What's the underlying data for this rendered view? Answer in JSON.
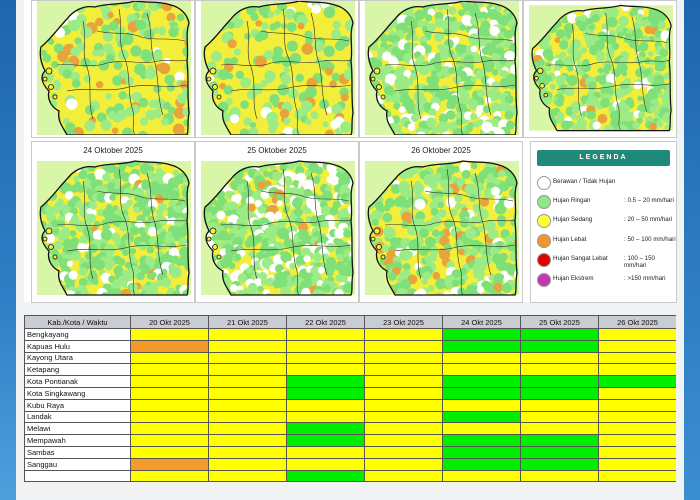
{
  "maps": [
    {
      "title": ""
    },
    {
      "title": ""
    },
    {
      "title": ""
    },
    {
      "title": ""
    },
    {
      "title": "24 Oktober 2025"
    },
    {
      "title": "25 Oktober 2025"
    },
    {
      "title": "26 Oktober 2025"
    }
  ],
  "legend": {
    "title": "LEGENDA",
    "items": [
      {
        "label": "Berawan / Tidak Hujan",
        "range": "",
        "color": "#ffffff"
      },
      {
        "label": "Hujan Ringan",
        "range": ": 0.5 – 20 mm/hari",
        "color": "#8ee88a"
      },
      {
        "label": "Hujan Sedang",
        "range": ": 20 – 50 mm/hari",
        "color": "#ffff33"
      },
      {
        "label": "Hujan Lebat",
        "range": ": 50 – 100 mm/hari",
        "color": "#f0962a"
      },
      {
        "label": "Hujan Sangat Lebat",
        "range": ": 100 – 150 mm/hari",
        "color": "#e00000"
      },
      {
        "label": "Hujan Ekstrem",
        "range": ": >150 mm/hari",
        "color": "#c23ab0"
      }
    ]
  },
  "table": {
    "header": [
      "Kab./Kota / Waktu",
      "20 Okt 2025",
      "21 Okt 2025",
      "22 Okt 2025",
      "23 Okt 2025",
      "24 Okt 2025",
      "25 Okt 2025",
      "26 Okt 2025"
    ],
    "rows": [
      {
        "name": "Bengkayang",
        "cells": [
          "y",
          "y",
          "y",
          "y",
          "g",
          "g",
          "y"
        ]
      },
      {
        "name": "Kapuas Hulu",
        "cells": [
          "o",
          "y",
          "y",
          "y",
          "g",
          "g",
          "y"
        ]
      },
      {
        "name": "Kayong Utara",
        "cells": [
          "y",
          "y",
          "y",
          "y",
          "y",
          "y",
          "y"
        ]
      },
      {
        "name": "Ketapang",
        "cells": [
          "y",
          "y",
          "y",
          "y",
          "y",
          "y",
          "y"
        ]
      },
      {
        "name": "Kota Pontianak",
        "cells": [
          "y",
          "y",
          "g",
          "y",
          "g",
          "g",
          "g"
        ]
      },
      {
        "name": "Kota Singkawang",
        "cells": [
          "y",
          "y",
          "g",
          "y",
          "g",
          "g",
          "y"
        ]
      },
      {
        "name": "Kubu Raya",
        "cells": [
          "y",
          "y",
          "y",
          "y",
          "y",
          "y",
          "y"
        ]
      },
      {
        "name": "Landak",
        "cells": [
          "y",
          "y",
          "y",
          "y",
          "g",
          "y",
          "y"
        ]
      },
      {
        "name": "Melawi",
        "cells": [
          "y",
          "y",
          "g",
          "y",
          "y",
          "y",
          "y"
        ]
      },
      {
        "name": "Mempawah",
        "cells": [
          "y",
          "y",
          "g",
          "y",
          "g",
          "g",
          "y"
        ]
      },
      {
        "name": "Sambas",
        "cells": [
          "y",
          "y",
          "y",
          "y",
          "g",
          "g",
          "y"
        ]
      },
      {
        "name": "Sanggau",
        "cells": [
          "o",
          "y",
          "y",
          "y",
          "g",
          "g",
          "y"
        ]
      },
      {
        "name": "",
        "cells": [
          "y",
          "y",
          "g",
          "y",
          "y",
          "y",
          "y"
        ]
      }
    ],
    "colors": {
      "y": "#ffff00",
      "g": "#00ee00",
      "o": "#f39a2b"
    }
  }
}
